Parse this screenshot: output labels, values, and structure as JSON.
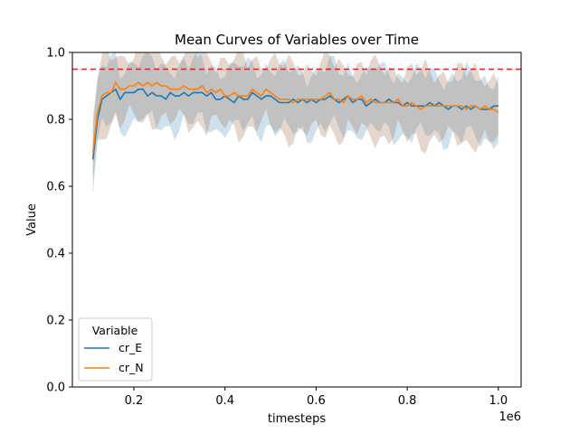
{
  "chart_data": {
    "type": "line",
    "title": "Mean Curves of Variables over Time",
    "xlabel": "timesteps",
    "ylabel": "Value",
    "x_offset_text": "1e6",
    "x_scale": 1000000,
    "xlim": [
      65000,
      1050000
    ],
    "ylim": [
      0,
      1.0
    ],
    "x_ticks": [
      200000,
      400000,
      600000,
      800000,
      1000000
    ],
    "x_tick_labels": [
      "0.2",
      "0.4",
      "0.6",
      "0.8",
      "1.0"
    ],
    "y_ticks": [
      0,
      0.2,
      0.4,
      0.6,
      0.8,
      1.0
    ],
    "y_tick_labels": [
      "0.0",
      "0.2",
      "0.4",
      "0.6",
      "0.8",
      "1.0"
    ],
    "reference_line": {
      "y": 0.95,
      "color": "#d62728",
      "style": "dashed"
    },
    "legend": {
      "title": "Variable",
      "placement": "lower-left"
    },
    "grid": false,
    "x": [
      110000,
      120000,
      130000,
      140000,
      150000,
      160000,
      170000,
      180000,
      190000,
      200000,
      210000,
      220000,
      230000,
      240000,
      250000,
      260000,
      270000,
      280000,
      290000,
      300000,
      310000,
      320000,
      330000,
      340000,
      350000,
      360000,
      370000,
      380000,
      390000,
      400000,
      410000,
      420000,
      430000,
      440000,
      450000,
      460000,
      470000,
      480000,
      490000,
      500000,
      510000,
      520000,
      530000,
      540000,
      550000,
      560000,
      570000,
      580000,
      590000,
      600000,
      610000,
      620000,
      630000,
      640000,
      650000,
      660000,
      670000,
      680000,
      690000,
      700000,
      710000,
      720000,
      730000,
      740000,
      750000,
      760000,
      770000,
      780000,
      790000,
      800000,
      810000,
      820000,
      830000,
      840000,
      850000,
      860000,
      870000,
      880000,
      890000,
      900000,
      910000,
      920000,
      930000,
      940000,
      950000,
      960000,
      970000,
      980000,
      990000,
      1000000
    ],
    "series": [
      {
        "name": "cr_E",
        "color": "#1f77b4",
        "band_color": "#1f77b4",
        "band_width": 0.09,
        "values": [
          0.68,
          0.8,
          0.86,
          0.87,
          0.88,
          0.89,
          0.86,
          0.88,
          0.88,
          0.88,
          0.89,
          0.89,
          0.87,
          0.88,
          0.87,
          0.87,
          0.86,
          0.88,
          0.87,
          0.87,
          0.88,
          0.87,
          0.88,
          0.88,
          0.88,
          0.87,
          0.88,
          0.86,
          0.86,
          0.87,
          0.86,
          0.85,
          0.87,
          0.86,
          0.86,
          0.88,
          0.87,
          0.86,
          0.87,
          0.87,
          0.86,
          0.85,
          0.85,
          0.85,
          0.86,
          0.85,
          0.86,
          0.85,
          0.86,
          0.85,
          0.86,
          0.86,
          0.87,
          0.86,
          0.85,
          0.86,
          0.87,
          0.85,
          0.86,
          0.86,
          0.84,
          0.85,
          0.86,
          0.85,
          0.85,
          0.86,
          0.85,
          0.85,
          0.84,
          0.85,
          0.84,
          0.84,
          0.84,
          0.84,
          0.85,
          0.84,
          0.85,
          0.84,
          0.83,
          0.84,
          0.84,
          0.83,
          0.84,
          0.83,
          0.84,
          0.83,
          0.83,
          0.83,
          0.84,
          0.84
        ]
      },
      {
        "name": "cr_N",
        "color": "#ff7f0e",
        "band_color": "#a0714a",
        "band_width": 0.1,
        "values": [
          0.7,
          0.82,
          0.87,
          0.88,
          0.88,
          0.91,
          0.89,
          0.89,
          0.9,
          0.9,
          0.91,
          0.9,
          0.91,
          0.9,
          0.91,
          0.9,
          0.9,
          0.89,
          0.89,
          0.89,
          0.9,
          0.89,
          0.89,
          0.89,
          0.9,
          0.88,
          0.89,
          0.88,
          0.89,
          0.87,
          0.87,
          0.88,
          0.87,
          0.87,
          0.87,
          0.89,
          0.88,
          0.87,
          0.89,
          0.88,
          0.87,
          0.86,
          0.86,
          0.86,
          0.85,
          0.86,
          0.86,
          0.86,
          0.86,
          0.86,
          0.86,
          0.87,
          0.88,
          0.86,
          0.86,
          0.85,
          0.87,
          0.86,
          0.86,
          0.87,
          0.85,
          0.86,
          0.85,
          0.85,
          0.85,
          0.85,
          0.85,
          0.86,
          0.84,
          0.84,
          0.85,
          0.84,
          0.83,
          0.84,
          0.84,
          0.84,
          0.84,
          0.84,
          0.84,
          0.84,
          0.84,
          0.84,
          0.83,
          0.84,
          0.84,
          0.83,
          0.84,
          0.83,
          0.83,
          0.82
        ]
      }
    ]
  }
}
